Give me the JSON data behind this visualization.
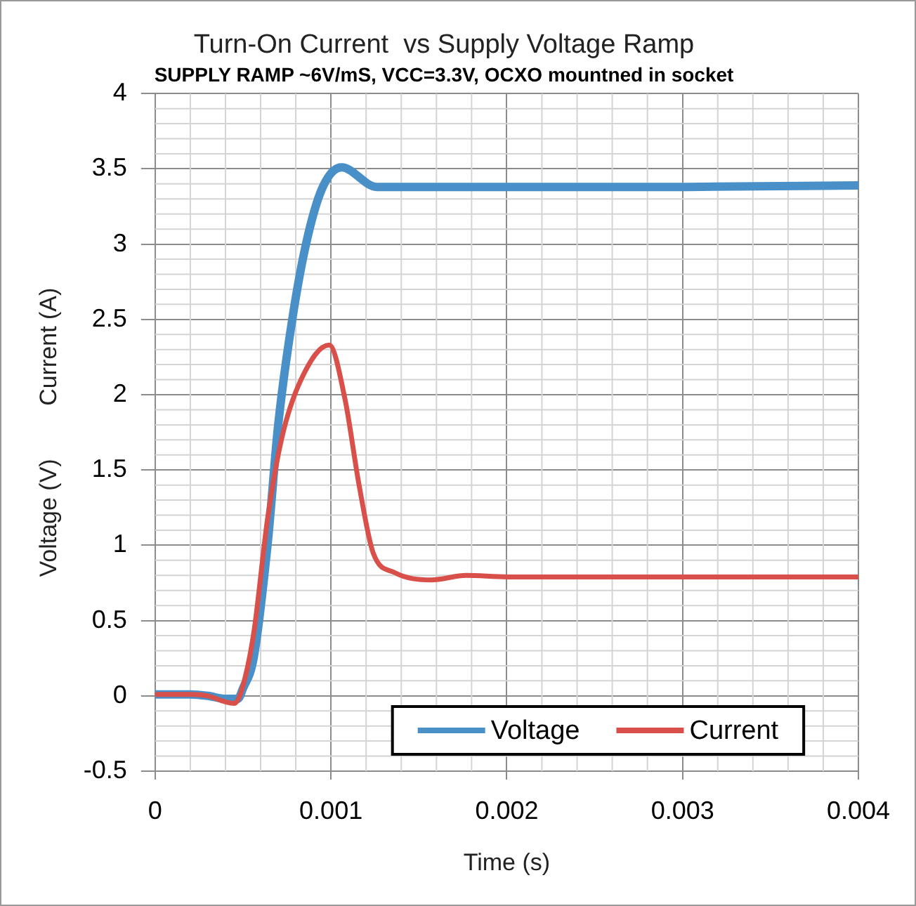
{
  "chart_data": {
    "type": "line",
    "title": "Turn-On Current  vs Supply Voltage Ramp",
    "subtitle": "SUPPLY RAMP ~6V/mS, VCC=3.3V, OCXO mountned in socket",
    "xlabel": "Time (s)",
    "ylabel": "Voltage (V)        Current (A)",
    "xlim": [
      0,
      0.004
    ],
    "xticks": [
      0,
      0.001,
      0.002,
      0.003,
      0.004
    ],
    "ylim": [
      -0.5,
      4
    ],
    "yticks": [
      -0.5,
      0,
      0.5,
      1,
      1.5,
      2,
      2.5,
      3,
      3.5,
      4
    ],
    "grid": true,
    "legend": "bottom",
    "marker": "none",
    "line_style": "solid",
    "series": [
      {
        "name": "Voltage",
        "color": "#4a90c8",
        "x": [
          0,
          0.0002,
          0.0003,
          0.0004,
          0.00047,
          0.0005,
          0.00056,
          0.00064,
          0.0007,
          0.00078,
          0.00086,
          0.00095,
          0.00106,
          0.00126,
          0.0015,
          0.002,
          0.003,
          0.004
        ],
        "values": [
          0.01,
          0.01,
          0.0,
          -0.02,
          -0.02,
          0.05,
          0.25,
          1.01,
          1.8,
          2.5,
          3.01,
          3.37,
          3.51,
          3.38,
          3.38,
          3.38,
          3.38,
          3.39
        ]
      },
      {
        "name": "Current",
        "color": "#d9504a",
        "x": [
          0,
          0.0002,
          0.0003,
          0.0004,
          0.00045,
          0.00049,
          0.00056,
          0.00064,
          0.00072,
          0.00083,
          0.00099,
          0.00108,
          0.00116,
          0.00124,
          0.00136,
          0.00157,
          0.00177,
          0.002,
          0.003,
          0.004
        ],
        "values": [
          0.01,
          0.01,
          0.0,
          -0.04,
          -0.05,
          0.03,
          0.41,
          1.18,
          1.71,
          2.1,
          2.33,
          1.97,
          1.4,
          0.95,
          0.82,
          0.77,
          0.8,
          0.79,
          0.79,
          0.79
        ]
      }
    ]
  }
}
